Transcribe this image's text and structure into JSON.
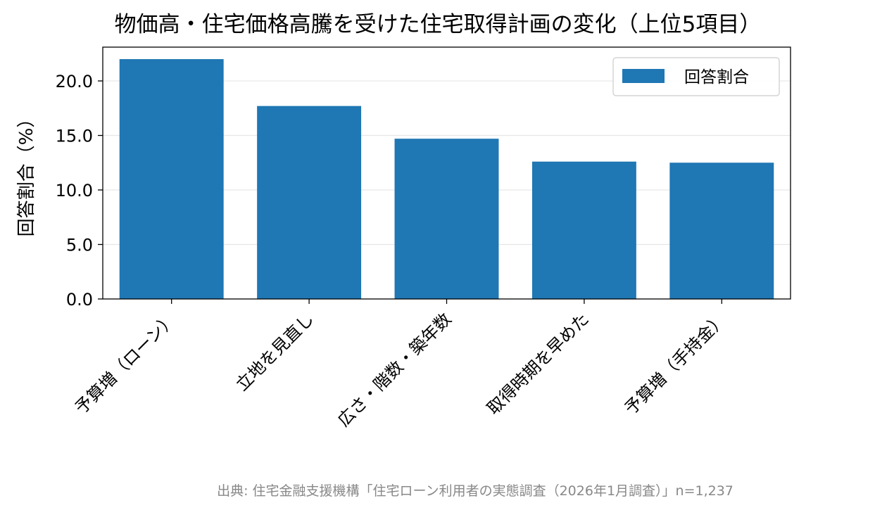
{
  "chart_data": {
    "type": "bar",
    "title": "物価高・住宅価格高騰を受けた住宅取得計画の変化（上位5項目）",
    "xlabel": "",
    "ylabel": "回答割合（%）",
    "categories": [
      "予算増（ローン）",
      "立地を見直し",
      "広さ・階数・築年数",
      "取得時期を早めた",
      "予算増（手持金）"
    ],
    "series": [
      {
        "name": "回答割合",
        "values": [
          22.0,
          17.7,
          14.7,
          12.6,
          12.5
        ]
      }
    ],
    "ylim": [
      0,
      23.1
    ],
    "yticks": [
      0,
      5,
      10,
      15,
      20
    ],
    "ytick_labels": [
      "0.0",
      "5.0",
      "10.0",
      "15.0",
      "20.0"
    ],
    "grid": "y",
    "legend_position": "top-right",
    "bar_color": "#1f77b4",
    "source_note": "出典: 住宅金融支援機構「住宅ローン利用者の実態調査（2026年1月調査）」n=1,237"
  }
}
